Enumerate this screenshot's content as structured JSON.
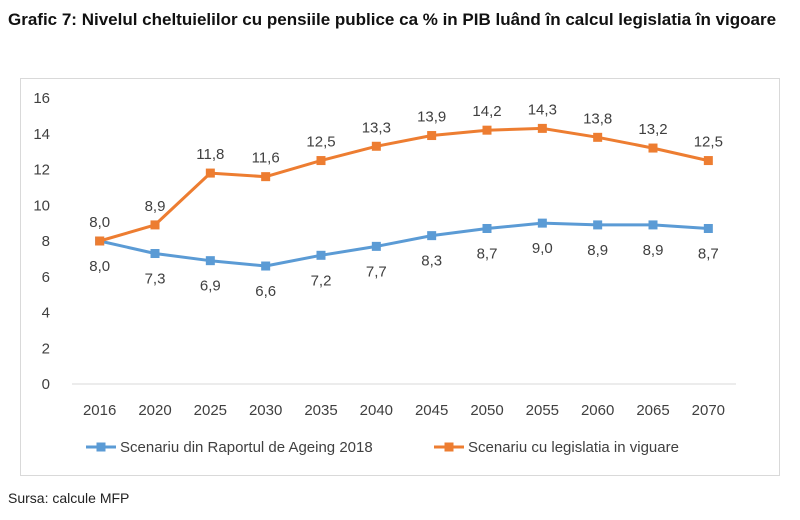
{
  "title": "Grafic 7: Nivelul cheltuielilor cu pensiile publice ca % in PIB luând în calcul legislatia în vigoare",
  "source": "Sursa: calcule MFP",
  "colors": {
    "blue": "#5b9bd5",
    "orange": "#ed7d31",
    "grid": "#d9d9d9",
    "text": "#404040"
  },
  "chart_data": {
    "type": "line",
    "categories": [
      "2016",
      "2020",
      "2025",
      "2030",
      "2035",
      "2040",
      "2045",
      "2050",
      "2055",
      "2060",
      "2065",
      "2070"
    ],
    "ylim": [
      0,
      16
    ],
    "yticks": [
      "0",
      "2",
      "4",
      "6",
      "8",
      "10",
      "12",
      "14",
      "16"
    ],
    "grid": false,
    "legend_position": "bottom",
    "series": [
      {
        "name": "Scenariu din Raportul de Ageing 2018",
        "color": "#5b9bd5",
        "values": [
          8.0,
          7.3,
          6.9,
          6.6,
          7.2,
          7.7,
          8.3,
          8.7,
          9.0,
          8.9,
          8.9,
          8.7
        ],
        "labels": [
          "8,0",
          "7,3",
          "6,9",
          "6,6",
          "7,2",
          "7,7",
          "8,3",
          "8,7",
          "9,0",
          "8,9",
          "8,9",
          "8,7"
        ]
      },
      {
        "name": "Scenariu cu legislatia in viguare",
        "color": "#ed7d31",
        "values": [
          8.0,
          8.9,
          11.8,
          11.6,
          12.5,
          13.3,
          13.9,
          14.2,
          14.3,
          13.8,
          13.2,
          12.5
        ],
        "labels": [
          "8,0",
          "8,9",
          "11,8",
          "11,6",
          "12,5",
          "13,3",
          "13,9",
          "14,2",
          "14,3",
          "13,8",
          "13,2",
          "12,5"
        ]
      }
    ]
  }
}
